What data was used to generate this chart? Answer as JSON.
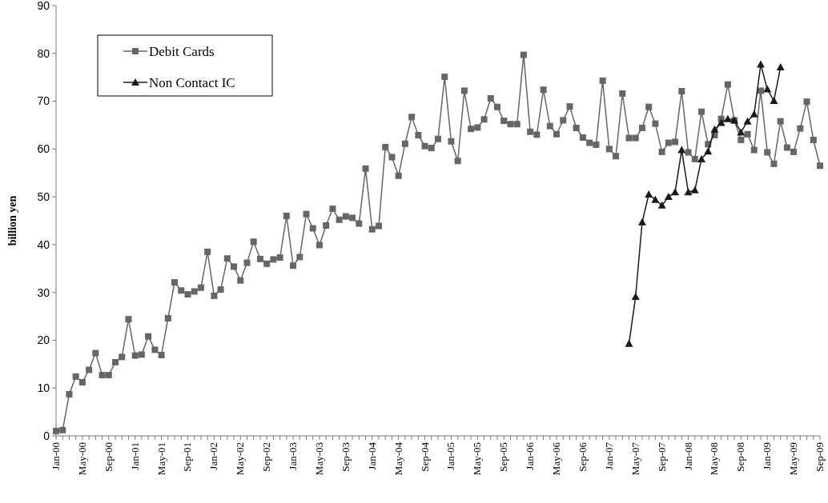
{
  "chart_data": {
    "type": "line",
    "ylabel": "billion yen",
    "categories": [
      "Jan-00",
      null,
      null,
      null,
      "May-00",
      null,
      null,
      null,
      "Sep-00",
      null,
      null,
      null,
      "Jan-01",
      null,
      null,
      null,
      "May-01",
      null,
      null,
      null,
      "Sep-01",
      null,
      null,
      null,
      "Jan-02",
      null,
      null,
      null,
      "May-02",
      null,
      null,
      null,
      "Sep-02",
      null,
      null,
      null,
      "Jan-03",
      null,
      null,
      null,
      "May-03",
      null,
      null,
      null,
      "Sep-03",
      null,
      null,
      null,
      "Jan-04",
      null,
      null,
      null,
      "May-04",
      null,
      null,
      null,
      "Sep-04",
      null,
      null,
      null,
      "Jan-05",
      null,
      null,
      null,
      "May-05",
      null,
      null,
      null,
      "Sep-05",
      null,
      null,
      null,
      "Jan-06",
      null,
      null,
      null,
      "May-06",
      null,
      null,
      null,
      "Sep-06",
      null,
      null,
      null,
      "Jan-07",
      null,
      null,
      null,
      "May-07",
      null,
      null,
      null,
      "Sep-07",
      null,
      null,
      null,
      "Jan-08",
      null,
      null,
      null,
      "May-08",
      null,
      null,
      null,
      "Sep-08",
      null,
      null,
      null,
      "Jan-09",
      null,
      null,
      null,
      "May-09",
      null,
      null,
      null,
      "Sep-09"
    ],
    "series": [
      {
        "name": "Debit Cards",
        "color": "#666666",
        "marker": "square",
        "values": [
          1.0,
          1.2,
          8.7,
          12.4,
          11.2,
          13.8,
          17.3,
          12.7,
          12.7,
          15.4,
          16.5,
          24.4,
          16.8,
          17.0,
          20.8,
          18.0,
          16.9,
          24.6,
          32.1,
          30.4,
          29.6,
          30.2,
          31.0,
          38.5,
          29.3,
          30.6,
          37.1,
          35.4,
          32.5,
          36.2,
          40.6,
          37.0,
          36.0,
          36.9,
          37.3,
          46.0,
          35.6,
          37.4,
          46.4,
          43.4,
          39.9,
          44.0,
          47.5,
          45.2,
          45.9,
          45.6,
          44.4,
          55.9,
          43.2,
          43.9,
          60.4,
          58.3,
          54.4,
          61.1,
          66.7,
          62.9,
          60.6,
          60.2,
          62.1,
          75.1,
          61.6,
          57.5,
          72.2,
          64.2,
          64.5,
          66.2,
          70.6,
          68.8,
          65.9,
          65.2,
          65.2,
          79.7,
          63.6,
          63.0,
          72.4,
          64.8,
          63.1,
          66.0,
          68.9,
          64.4,
          62.4,
          61.3,
          60.9,
          74.3,
          60.0,
          58.5,
          71.6,
          62.3,
          62.3,
          64.4,
          68.8,
          65.3,
          59.4,
          61.3,
          61.5,
          72.1,
          59.3,
          57.9,
          67.8,
          61.0,
          62.9,
          66.3,
          73.5,
          66.0,
          61.9,
          63.1,
          59.8,
          72.2,
          59.3,
          56.9,
          65.8,
          60.3,
          59.4,
          64.3,
          69.9,
          61.9,
          56.5
        ]
      },
      {
        "name": "Non Contact IC",
        "color": "#1a1a1a",
        "marker": "triangle",
        "values": [
          null,
          null,
          null,
          null,
          null,
          null,
          null,
          null,
          null,
          null,
          null,
          null,
          null,
          null,
          null,
          null,
          null,
          null,
          null,
          null,
          null,
          null,
          null,
          null,
          null,
          null,
          null,
          null,
          null,
          null,
          null,
          null,
          null,
          null,
          null,
          null,
          null,
          null,
          null,
          null,
          null,
          null,
          null,
          null,
          null,
          null,
          null,
          null,
          null,
          null,
          null,
          null,
          null,
          null,
          null,
          null,
          null,
          null,
          null,
          null,
          null,
          null,
          null,
          null,
          null,
          null,
          null,
          null,
          null,
          null,
          null,
          null,
          null,
          null,
          null,
          null,
          null,
          null,
          null,
          null,
          null,
          null,
          null,
          null,
          null,
          null,
          null,
          19.3,
          29.1,
          44.7,
          50.5,
          49.4,
          48.2,
          50.0,
          51.0,
          59.8,
          51.0,
          51.4,
          57.9,
          59.5,
          64.1,
          65.5,
          66.3,
          66.0,
          63.5,
          65.8,
          67.3,
          77.7,
          72.5,
          70.1,
          77.1,
          null,
          null,
          null,
          null,
          null,
          null
        ]
      }
    ],
    "ylim": [
      0,
      90
    ],
    "yticks": [
      0,
      10,
      20,
      30,
      40,
      50,
      60,
      70,
      80,
      90
    ],
    "grid": false,
    "legend": "top left"
  }
}
